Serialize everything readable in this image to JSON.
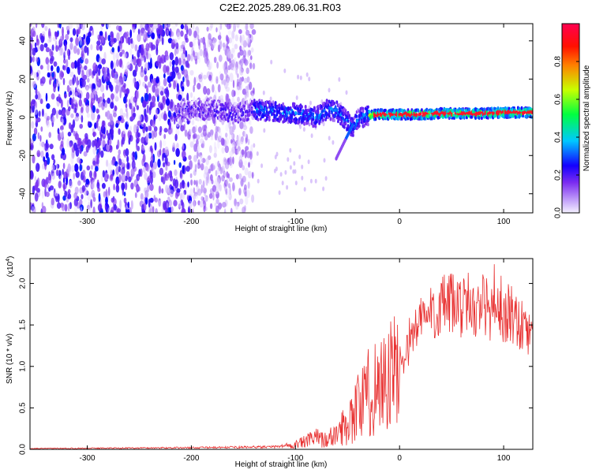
{
  "title": "C2E2.2025.289.06.31.R03",
  "chart_data": [
    {
      "type": "heatmap",
      "name": "spectrogram",
      "xlabel": "Height of straight line (km)",
      "ylabel": "Frequency (Hz)",
      "xlim": [
        -355,
        128
      ],
      "ylim": [
        -50,
        49
      ],
      "xticks": [
        -300,
        -200,
        -100,
        0,
        100
      ],
      "yticks": [
        -40,
        -20,
        0,
        20,
        40
      ],
      "xtick_labels": [
        "-300",
        "-200",
        "-100",
        "0",
        "100"
      ],
      "ytick_labels": [
        "-40",
        "-20",
        "0",
        "20",
        "40"
      ],
      "colorbar": {
        "label": "Normalized spectral amplitude",
        "range": [
          0,
          1
        ],
        "ticks": [
          0.0,
          0.2,
          0.4,
          0.6,
          0.8
        ],
        "tick_labels": [
          "0.0",
          "0.2",
          "0.4",
          "0.6",
          "0.8"
        ],
        "colormap": [
          "#f4f0ff",
          "#7b2cf0",
          "#1400ff",
          "#00c8ff",
          "#00ff40",
          "#c8ff00",
          "#ff4000",
          "#ff0040"
        ]
      },
      "ridge": {
        "x": [
          -210,
          -180,
          -160,
          -140,
          -120,
          -100,
          -80,
          -70,
          -60,
          -50,
          -45,
          -40,
          -30,
          -20,
          0,
          20,
          40,
          60,
          80,
          100,
          128
        ],
        "y": [
          3,
          4,
          2,
          4,
          3,
          2,
          0,
          4,
          3,
          -2,
          -6,
          -1,
          1,
          1.5,
          1.5,
          1.5,
          2,
          2,
          2,
          2.5,
          2.5
        ]
      }
    },
    {
      "type": "line",
      "name": "snr",
      "xlabel": "Height of straight line (km)",
      "ylabel": "SNR (10 * v/v)",
      "ymultiplier": "(x10",
      "ymultiplier_exp": "4",
      "xlim": [
        -355,
        128
      ],
      "ylim": [
        0,
        2.3
      ],
      "xticks": [
        -300,
        -200,
        -100,
        0,
        100
      ],
      "yticks": [
        0.0,
        0.5,
        1.0,
        1.5,
        2.0
      ],
      "xtick_labels": [
        "-300",
        "-200",
        "-100",
        "0",
        "100"
      ],
      "ytick_labels": [
        "0.0",
        "0.5",
        "1.0",
        "1.5",
        "2.0"
      ],
      "color": "#e83030",
      "envelope": {
        "x": [
          -355,
          -200,
          -120,
          -100,
          -90,
          -80,
          -70,
          -60,
          -50,
          -40,
          -30,
          -20,
          -10,
          0,
          10,
          20,
          30,
          40,
          50,
          60,
          70,
          80,
          90,
          100,
          110,
          120,
          128
        ],
        "y": [
          0.01,
          0.02,
          0.03,
          0.06,
          0.1,
          0.15,
          0.12,
          0.2,
          0.35,
          0.55,
          0.7,
          0.85,
          0.9,
          1.0,
          1.3,
          1.5,
          1.6,
          1.68,
          1.7,
          1.68,
          1.65,
          1.7,
          1.6,
          1.5,
          1.6,
          1.4,
          1.3
        ]
      }
    }
  ]
}
